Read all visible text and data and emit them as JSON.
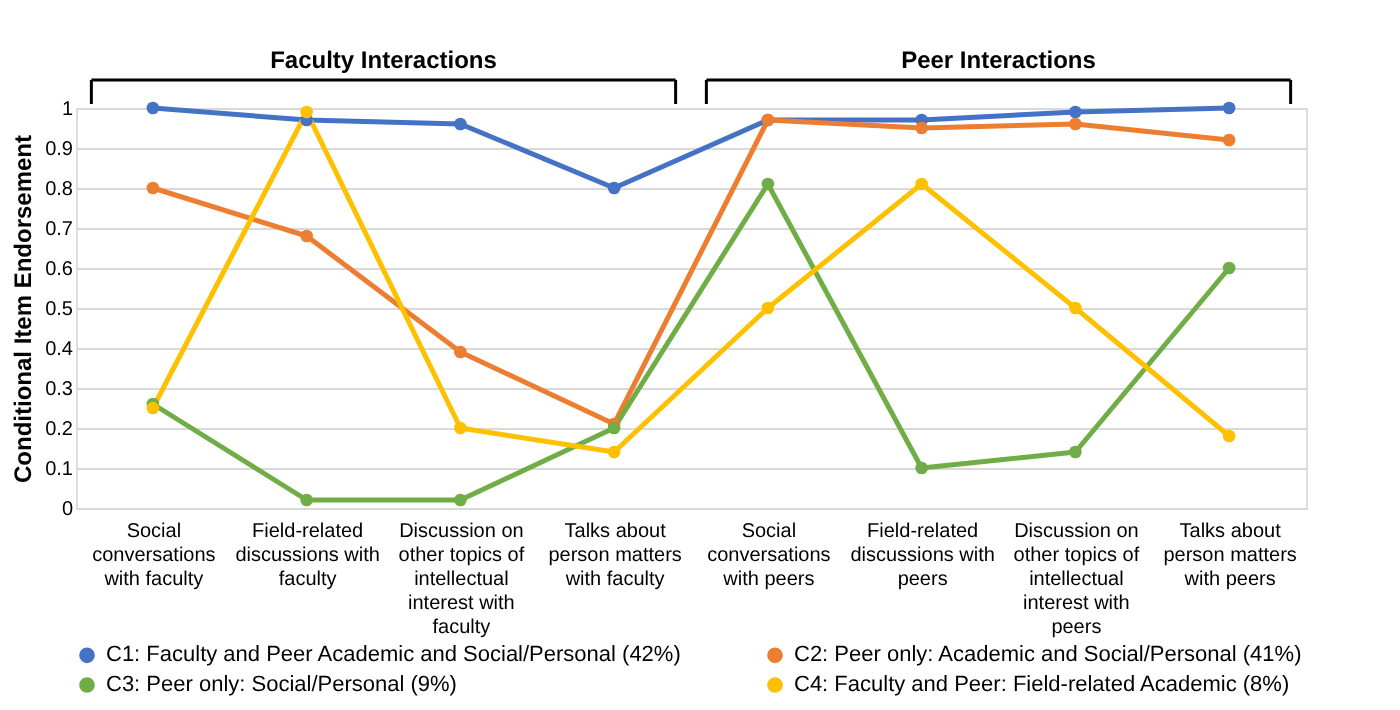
{
  "chart_data": {
    "type": "line",
    "ylabel": "Conditional Item Endorsement",
    "categories": [
      "Social conversations with faculty",
      "Field-related discussions with faculty",
      "Discussion on other topics of intellectual interest with faculty",
      "Talks about person matters with faculty",
      "Social conversations with peers",
      "Field-related discussions with peers",
      "Discussion on other topics of intellectual interest with peers",
      "Talks about person matters with peers"
    ],
    "series": [
      {
        "name": "C1: Faculty and Peer Academic and Social/Personal (42%)",
        "color": "#4472c4",
        "values": [
          1.0,
          0.97,
          0.96,
          0.8,
          0.97,
          0.97,
          0.99,
          1.0
        ]
      },
      {
        "name": "C2: Peer only: Academic and Social/Personal (41%)",
        "color": "#ed7d31",
        "values": [
          0.8,
          0.68,
          0.39,
          0.21,
          0.97,
          0.95,
          0.96,
          0.92
        ]
      },
      {
        "name": "C3: Peer only: Social/Personal (9%)",
        "color": "#70ad47",
        "values": [
          0.26,
          0.02,
          0.02,
          0.2,
          0.81,
          0.1,
          0.14,
          0.6
        ]
      },
      {
        "name": "C4: Faculty and Peer: Field-related Academic (8%)",
        "color": "#ffc000",
        "values": [
          0.25,
          0.99,
          0.2,
          0.14,
          0.5,
          0.81,
          0.5,
          0.18
        ]
      }
    ],
    "ylim": [
      0,
      1
    ],
    "yticks": [
      0,
      0.1,
      0.2,
      0.3,
      0.4,
      0.5,
      0.6,
      0.7,
      0.8,
      0.9,
      1
    ],
    "annotations": [
      "Faculty Interactions",
      "Peer Interactions"
    ],
    "grid": "y",
    "legend": "bottom",
    "marker": "circle",
    "line_style": "solid"
  }
}
